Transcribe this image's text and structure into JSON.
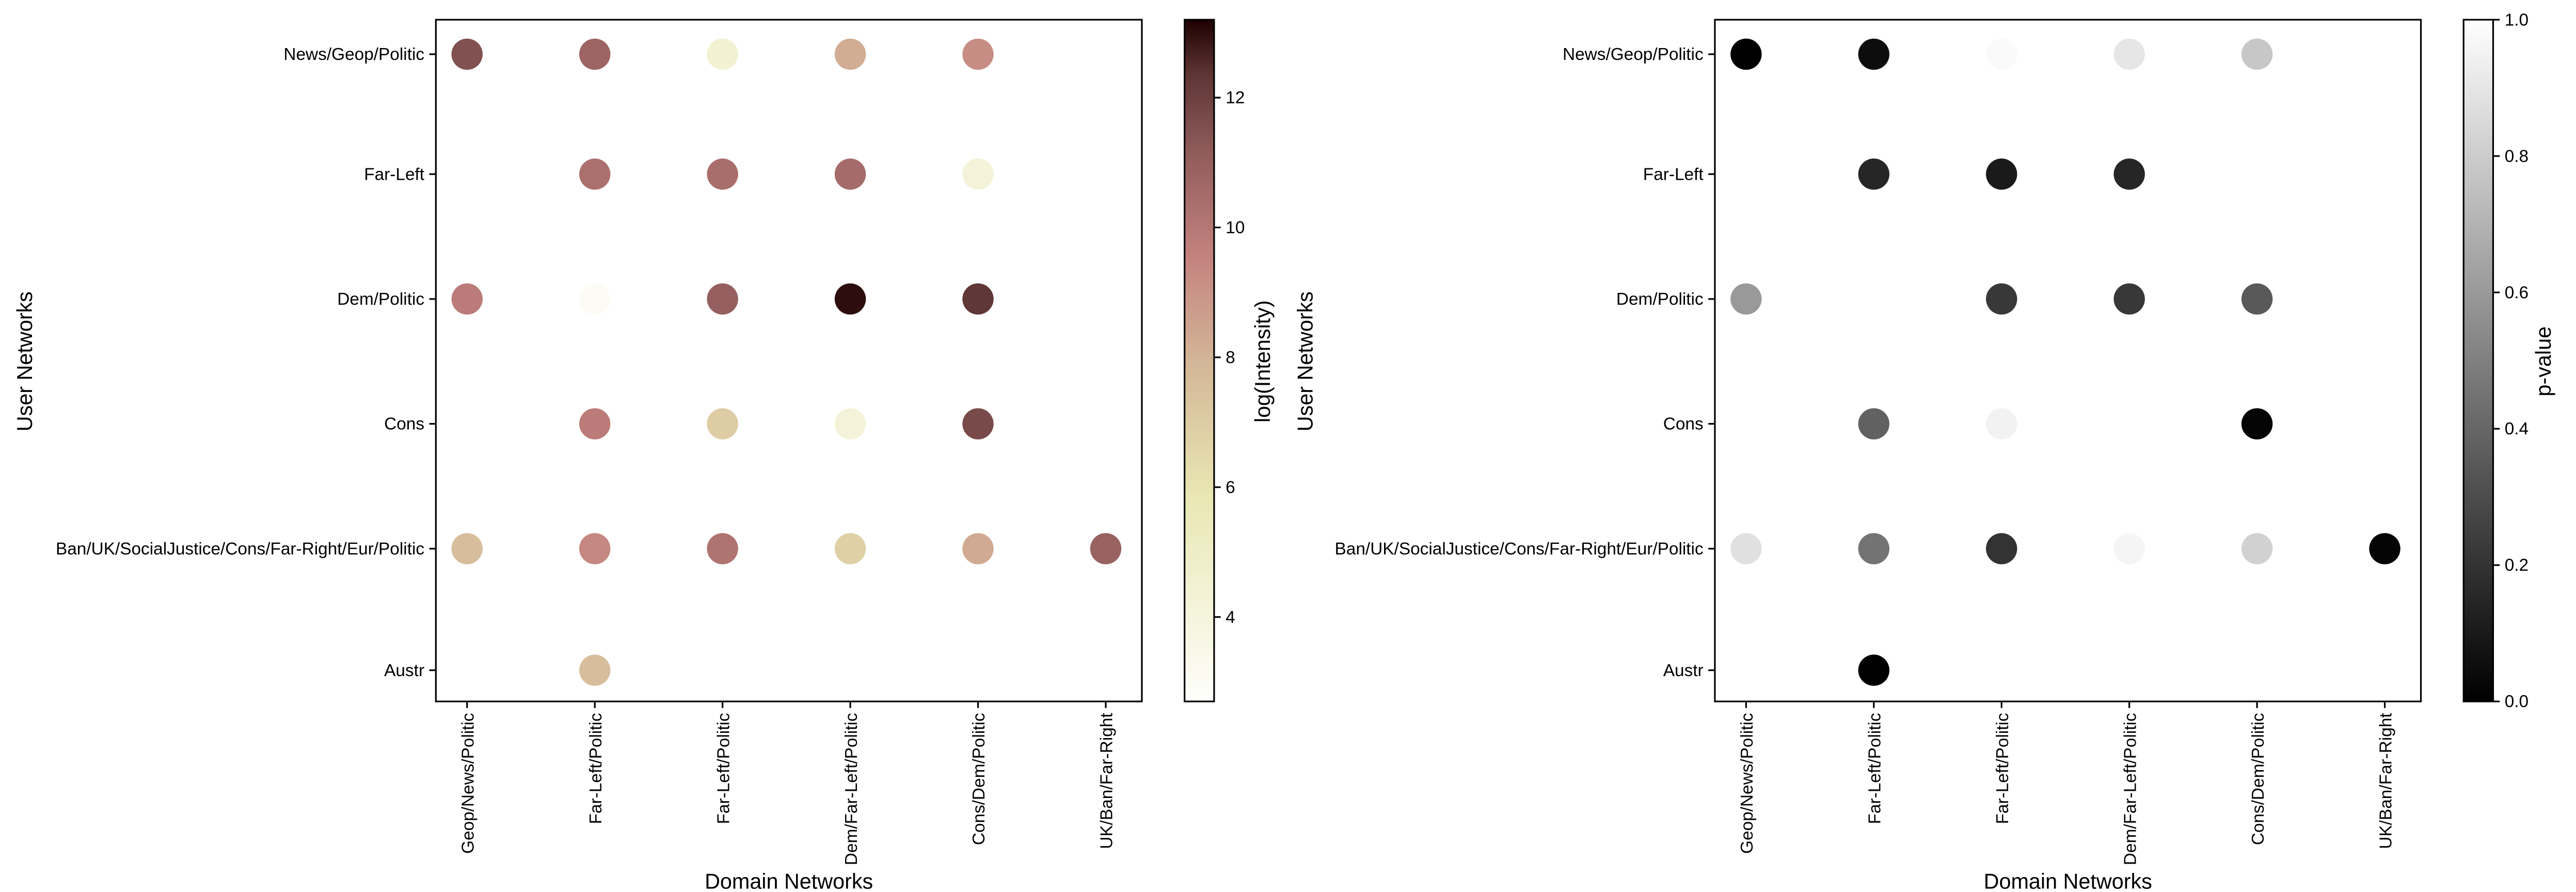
{
  "chart_data": [
    {
      "type": "scatter",
      "xlabel": "Domain Networks",
      "ylabel": "User Networks",
      "x_categories": [
        "Geop/News/Politic",
        "Far-Left/Politic",
        "Far-Left/Politic",
        "Dem/Far-Left/Politic",
        "Cons/Dem/Politic",
        "UK/Ban/Far-Right"
      ],
      "y_categories": [
        "News/Geop/Politic",
        "Far-Left",
        "Dem/Politic",
        "Cons",
        "Ban/UK/SocialJustice/Cons/Far-Right/Eur/Politic",
        "Austr"
      ],
      "colorbar": {
        "label": "log(Intensity)",
        "range": [
          2.7,
          13.2
        ],
        "ticks": [
          "4",
          "6",
          "8",
          "10",
          "12"
        ],
        "tick_values": [
          4,
          6,
          8,
          10,
          12
        ],
        "colormap": "pink_r"
      },
      "points": [
        {
          "x": 0,
          "y": 0,
          "value": 11.5
        },
        {
          "x": 1,
          "y": 0,
          "value": 10.8
        },
        {
          "x": 2,
          "y": 0,
          "value": 4.5
        },
        {
          "x": 3,
          "y": 0,
          "value": 8.2
        },
        {
          "x": 4,
          "y": 0,
          "value": 9.2
        },
        {
          "x": 1,
          "y": 1,
          "value": 10.3
        },
        {
          "x": 2,
          "y": 1,
          "value": 10.4
        },
        {
          "x": 3,
          "y": 1,
          "value": 10.5
        },
        {
          "x": 4,
          "y": 1,
          "value": 4.2
        },
        {
          "x": 0,
          "y": 2,
          "value": 9.8
        },
        {
          "x": 1,
          "y": 2,
          "value": 3.0
        },
        {
          "x": 2,
          "y": 2,
          "value": 11.0
        },
        {
          "x": 3,
          "y": 2,
          "value": 13.0
        },
        {
          "x": 4,
          "y": 2,
          "value": 12.3
        },
        {
          "x": 1,
          "y": 3,
          "value": 9.8
        },
        {
          "x": 2,
          "y": 3,
          "value": 7.0
        },
        {
          "x": 3,
          "y": 3,
          "value": 4.2
        },
        {
          "x": 4,
          "y": 3,
          "value": 11.7
        },
        {
          "x": 0,
          "y": 4,
          "value": 7.6
        },
        {
          "x": 1,
          "y": 4,
          "value": 9.4
        },
        {
          "x": 2,
          "y": 4,
          "value": 10.2
        },
        {
          "x": 3,
          "y": 4,
          "value": 6.8
        },
        {
          "x": 4,
          "y": 4,
          "value": 8.3
        },
        {
          "x": 5,
          "y": 4,
          "value": 10.9
        },
        {
          "x": 1,
          "y": 5,
          "value": 7.6
        }
      ]
    },
    {
      "type": "scatter",
      "xlabel": "Domain Networks",
      "ylabel": "User Networks",
      "x_categories": [
        "Geop/News/Politic",
        "Far-Left/Politic",
        "Far-Left/Politic",
        "Dem/Far-Left/Politic",
        "Cons/Dem/Politic",
        "UK/Ban/Far-Right"
      ],
      "y_categories": [
        "News/Geop/Politic",
        "Far-Left",
        "Dem/Politic",
        "Cons",
        "Ban/UK/SocialJustice/Cons/Far-Right/Eur/Politic",
        "Austr"
      ],
      "colorbar": {
        "label": "p-value",
        "range": [
          0,
          1
        ],
        "ticks": [
          "0.0",
          "0.2",
          "0.4",
          "0.6",
          "0.8",
          "1.0"
        ],
        "tick_values": [
          0,
          0.2,
          0.4,
          0.6,
          0.8,
          1.0
        ],
        "colormap": "gray"
      },
      "points": [
        {
          "x": 0,
          "y": 0,
          "value": 0.0
        },
        {
          "x": 1,
          "y": 0,
          "value": 0.05
        },
        {
          "x": 2,
          "y": 0,
          "value": 0.98
        },
        {
          "x": 3,
          "y": 0,
          "value": 0.9
        },
        {
          "x": 4,
          "y": 0,
          "value": 0.78
        },
        {
          "x": 1,
          "y": 1,
          "value": 0.15
        },
        {
          "x": 2,
          "y": 1,
          "value": 0.1
        },
        {
          "x": 3,
          "y": 1,
          "value": 0.15
        },
        {
          "x": 0,
          "y": 2,
          "value": 0.6
        },
        {
          "x": 2,
          "y": 2,
          "value": 0.22
        },
        {
          "x": 3,
          "y": 2,
          "value": 0.22
        },
        {
          "x": 4,
          "y": 2,
          "value": 0.35
        },
        {
          "x": 1,
          "y": 3,
          "value": 0.38
        },
        {
          "x": 2,
          "y": 3,
          "value": 0.95
        },
        {
          "x": 4,
          "y": 3,
          "value": 0.02
        },
        {
          "x": 0,
          "y": 4,
          "value": 0.88
        },
        {
          "x": 1,
          "y": 4,
          "value": 0.45
        },
        {
          "x": 2,
          "y": 4,
          "value": 0.2
        },
        {
          "x": 3,
          "y": 4,
          "value": 0.96
        },
        {
          "x": 4,
          "y": 4,
          "value": 0.82
        },
        {
          "x": 5,
          "y": 4,
          "value": 0.02
        },
        {
          "x": 1,
          "y": 5,
          "value": 0.0
        }
      ]
    }
  ]
}
